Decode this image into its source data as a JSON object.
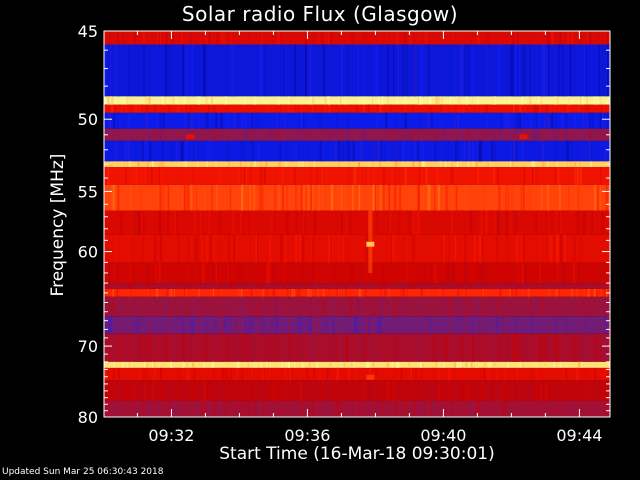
{
  "chart_data": {
    "type": "heatmap",
    "title": "Solar radio Flux (Glasgow)",
    "xlabel": "Start Time (16-Mar-18 09:30:01)",
    "ylabel": "Frequency [MHz]",
    "x_ticks": [
      "09:32",
      "09:36",
      "09:40",
      "09:44"
    ],
    "x_tick_minutes": [
      32,
      36,
      40,
      44
    ],
    "x_range_minutes": [
      30.0167,
      44.9
    ],
    "y_ticks": [
      45,
      50,
      55,
      60,
      70,
      80
    ],
    "y_range_mhz": [
      45,
      80
    ],
    "y_scale": "reciprocal",
    "colormap": [
      "#00007a",
      "#1020ff",
      "#8a1a55",
      "#c80000",
      "#ff1a00",
      "#ff9a20",
      "#ffffa0"
    ],
    "intensity_bands": [
      {
        "f_from": 45.0,
        "f_to": 45.7,
        "level": 0.55
      },
      {
        "f_from": 45.7,
        "f_to": 48.6,
        "level": 0.12
      },
      {
        "f_from": 48.6,
        "f_to": 49.1,
        "level": 0.98
      },
      {
        "f_from": 49.1,
        "f_to": 49.6,
        "level": 0.6
      },
      {
        "f_from": 49.6,
        "f_to": 50.6,
        "level": 0.14
      },
      {
        "f_from": 50.6,
        "f_to": 51.4,
        "level": 0.35
      },
      {
        "f_from": 51.4,
        "f_to": 52.8,
        "level": 0.13
      },
      {
        "f_from": 52.8,
        "f_to": 53.2,
        "level": 0.92
      },
      {
        "f_from": 53.2,
        "f_to": 54.5,
        "level": 0.62
      },
      {
        "f_from": 54.5,
        "f_to": 56.5,
        "level": 0.72
      },
      {
        "f_from": 56.5,
        "f_to": 58.5,
        "level": 0.55
      },
      {
        "f_from": 58.5,
        "f_to": 61.0,
        "level": 0.58
      },
      {
        "f_from": 61.0,
        "f_to": 63.0,
        "level": 0.52
      },
      {
        "f_from": 63.0,
        "f_to": 63.6,
        "level": 0.42
      },
      {
        "f_from": 63.6,
        "f_to": 64.4,
        "level": 0.68
      },
      {
        "f_from": 64.4,
        "f_to": 66.5,
        "level": 0.38
      },
      {
        "f_from": 66.5,
        "f_to": 68.5,
        "level": 0.3
      },
      {
        "f_from": 68.5,
        "f_to": 72.0,
        "level": 0.42
      },
      {
        "f_from": 72.0,
        "f_to": 72.8,
        "level": 0.95
      },
      {
        "f_from": 72.8,
        "f_to": 74.5,
        "level": 0.58
      },
      {
        "f_from": 74.5,
        "f_to": 77.5,
        "level": 0.48
      },
      {
        "f_from": 77.5,
        "f_to": 80.0,
        "level": 0.4
      }
    ],
    "hotspots": [
      {
        "time_min": 37.85,
        "freq_mhz": 59.3,
        "level": 0.9
      },
      {
        "time_min": 37.85,
        "freq_mhz": 74.0,
        "level": 0.7
      },
      {
        "time_min": 32.55,
        "freq_mhz": 51.1,
        "level": 0.6
      },
      {
        "time_min": 42.35,
        "freq_mhz": 51.1,
        "level": 0.6
      }
    ],
    "grid": false,
    "legend": "none"
  },
  "footer_text": "Updated Sun Mar 25 06:30:43 2018"
}
